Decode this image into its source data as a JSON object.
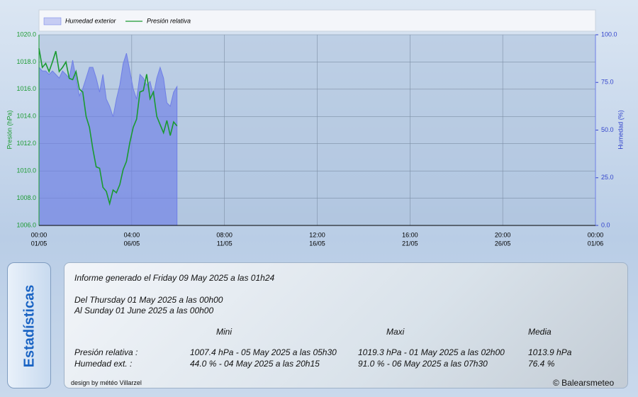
{
  "chart_data": {
    "type": "line",
    "legend": "top",
    "grid": true,
    "ylabel": "Presión (hPa)",
    "y2label": "Humedad (%)",
    "xlim": [
      0,
      744
    ],
    "xticks": [
      {
        "value": 0,
        "label": "00:00",
        "date": "01/05"
      },
      {
        "value": 124,
        "label": "04:00",
        "date": "06/05"
      },
      {
        "value": 248,
        "label": "08:00",
        "date": "11/05"
      },
      {
        "value": 372,
        "label": "12:00",
        "date": "16/05"
      },
      {
        "value": 496,
        "label": "16:00",
        "date": "21/05"
      },
      {
        "value": 620,
        "label": "20:00",
        "date": "26/05"
      },
      {
        "value": 744,
        "label": "00:00",
        "date": "01/06"
      }
    ],
    "ylim": [
      1006,
      1020
    ],
    "yticks": [
      {
        "value": 1006,
        "label": "1006.0"
      },
      {
        "value": 1008,
        "label": "1008.0"
      },
      {
        "value": 1010,
        "label": "1010.0"
      },
      {
        "value": 1012,
        "label": "1012.0"
      },
      {
        "value": 1014,
        "label": "1014.0"
      },
      {
        "value": 1016,
        "label": "1016.0"
      },
      {
        "value": 1018,
        "label": "1018.0"
      },
      {
        "value": 1020,
        "label": "1020.0"
      }
    ],
    "y2lim": [
      0,
      100
    ],
    "y2ticks": [
      {
        "value": 0,
        "label": "0.0"
      },
      {
        "value": 25,
        "label": "25.0"
      },
      {
        "value": 50,
        "label": "50.0"
      },
      {
        "value": 75,
        "label": "75.0"
      },
      {
        "value": 100,
        "label": "100.0"
      }
    ],
    "x": [
      0,
      4.5,
      9,
      13.5,
      18,
      22.5,
      27,
      31.5,
      36,
      40.5,
      45,
      49.5,
      54,
      58.5,
      63,
      67.5,
      72,
      76.5,
      81,
      85.5,
      90,
      94.5,
      99,
      103.5,
      108,
      112.5,
      117,
      121.5,
      126,
      130.5,
      135,
      139.5,
      144,
      148.5,
      153,
      157.5,
      162,
      166.5,
      171,
      175.5,
      180,
      184.5
    ],
    "series": [
      {
        "name": "Humedad exterior",
        "kind": "area",
        "axis": "y2",
        "color": "#6f7fe6",
        "values": [
          82.9,
          81.0,
          81.0,
          79.2,
          81.0,
          79.2,
          77.3,
          81.0,
          79.2,
          77.3,
          86.6,
          77.3,
          68.0,
          71.7,
          77.3,
          82.9,
          82.9,
          77.3,
          69.9,
          79.2,
          66.2,
          62.5,
          56.9,
          66.2,
          73.6,
          84.8,
          90.3,
          81.0,
          71.7,
          66.2,
          79.2,
          77.3,
          73.6,
          75.5,
          68.0,
          77.3,
          82.9,
          77.3,
          64.3,
          62.5,
          69.9,
          72.8
        ]
      },
      {
        "name": "Presión relativa",
        "kind": "line",
        "axis": "y",
        "color": "#1a9a30",
        "values": [
          1019.0,
          1017.6,
          1017.9,
          1017.3,
          1018.0,
          1018.8,
          1017.3,
          1017.6,
          1018.0,
          1016.8,
          1016.7,
          1017.3,
          1016.0,
          1015.8,
          1014.0,
          1013.2,
          1011.6,
          1010.3,
          1010.2,
          1008.8,
          1008.5,
          1007.6,
          1008.6,
          1008.4,
          1009.0,
          1010.1,
          1010.7,
          1012.1,
          1013.2,
          1013.8,
          1015.8,
          1015.9,
          1017.1,
          1015.3,
          1015.8,
          1014.0,
          1013.4,
          1012.8,
          1013.7,
          1012.6,
          1013.6,
          1013.3
        ]
      }
    ]
  },
  "stats": {
    "tab": "Estadísticas",
    "generated": "Informe generado el Friday 09 May 2025 a las 01h24",
    "from": "Del Thursday 01 May 2025 a las 00h00",
    "to": "Al Sunday 01 June 2025 a las 00h00",
    "headers": [
      "Mini",
      "Maxi",
      "Media"
    ],
    "rows": [
      [
        "Presión relativa :",
        "1007.4 hPa - 05 May 2025 a las 05h30",
        "1019.3 hPa - 01 May 2025 a las 02h00",
        "1013.9 hPa"
      ],
      [
        "Humedad ext. :",
        "44.0 % - 04 May 2025 a las 20h15",
        "91.0 % - 06 May 2025 a las 07h30",
        "76.4 %"
      ]
    ],
    "credit": "design by météo Villarzel",
    "copyright": "© Balearsmeteo"
  }
}
